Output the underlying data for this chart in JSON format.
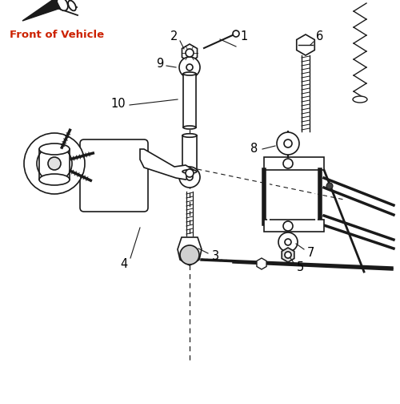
{
  "background_color": "#ffffff",
  "line_color": "#1a1a1a",
  "label_color": "#000000",
  "front_of_vehicle_color": "#cc2200",
  "figsize": [
    5.0,
    5.04
  ],
  "dpi": 100
}
